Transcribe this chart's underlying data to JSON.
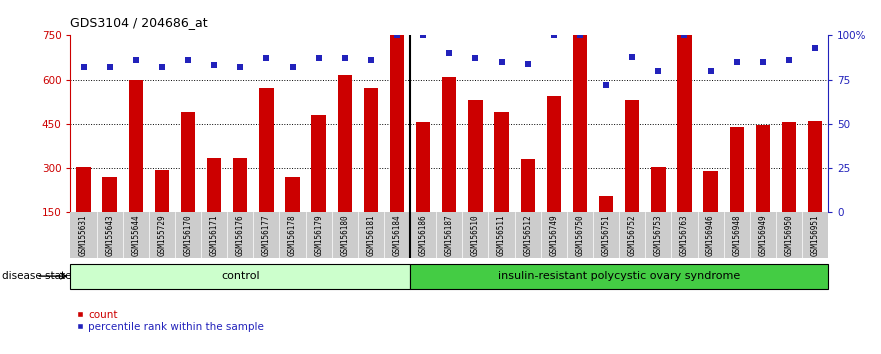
{
  "title": "GDS3104 / 204686_at",
  "samples": [
    "GSM155631",
    "GSM155643",
    "GSM155644",
    "GSM155729",
    "GSM156170",
    "GSM156171",
    "GSM156176",
    "GSM156177",
    "GSM156178",
    "GSM156179",
    "GSM156180",
    "GSM156181",
    "GSM156184",
    "GSM156186",
    "GSM156187",
    "GSM156510",
    "GSM156511",
    "GSM156512",
    "GSM156749",
    "GSM156750",
    "GSM156751",
    "GSM156752",
    "GSM156753",
    "GSM156763",
    "GSM156946",
    "GSM156948",
    "GSM156949",
    "GSM156950",
    "GSM156951"
  ],
  "counts": [
    305,
    270,
    600,
    295,
    490,
    335,
    335,
    570,
    270,
    480,
    615,
    570,
    750,
    455,
    610,
    530,
    490,
    330,
    545,
    750,
    205,
    530,
    305,
    750,
    290,
    440,
    445,
    455,
    460
  ],
  "percentile_ranks": [
    82,
    82,
    86,
    82,
    86,
    83,
    82,
    87,
    82,
    87,
    87,
    86,
    100,
    100,
    90,
    87,
    85,
    84,
    100,
    100,
    72,
    88,
    80,
    100,
    80,
    85,
    85,
    86,
    93
  ],
  "group_labels": [
    "control",
    "insulin-resistant polycystic ovary syndrome"
  ],
  "group_counts": [
    13,
    16
  ],
  "ymin": 150,
  "ymax": 750,
  "yticks_left": [
    150,
    300,
    450,
    600,
    750
  ],
  "yticks_right": [
    0,
    25,
    50,
    75,
    100
  ],
  "hlines": [
    300,
    450,
    600
  ],
  "bar_color": "#cc0000",
  "dot_color": "#2222bb",
  "control_bg": "#ccffcc",
  "pcos_bg": "#44cc44",
  "label_bg": "#cccccc"
}
